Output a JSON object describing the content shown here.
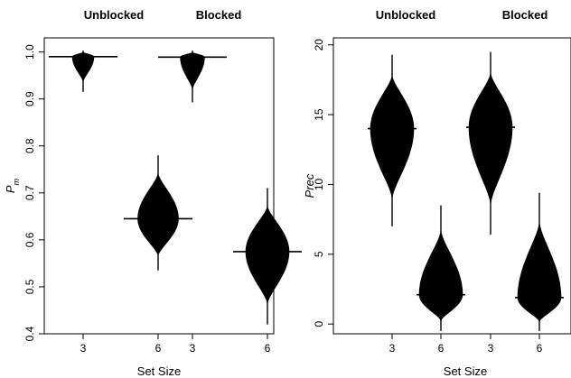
{
  "chart_data": [
    {
      "type": "violin",
      "xlabel": "Set Size",
      "ylabel": "P_m",
      "ylim": [
        0.4,
        1.03
      ],
      "yticks": [
        0.4,
        0.5,
        0.6,
        0.7,
        0.8,
        0.9,
        1.0
      ],
      "ytick_labels": [
        "0.4",
        "0.5",
        "0.6",
        "0.7",
        "0.8",
        "0.9",
        "1.0"
      ],
      "groups": [
        "Unblocked",
        "Blocked"
      ],
      "categories": [
        "3",
        "6",
        "3",
        "6"
      ],
      "series": [
        {
          "group": "Unblocked",
          "set_size": "3",
          "mean": 0.99,
          "min": 0.915,
          "max": 1.003
        },
        {
          "group": "Unblocked",
          "set_size": "6",
          "mean": 0.645,
          "min": 0.535,
          "max": 0.78
        },
        {
          "group": "Blocked",
          "set_size": "3",
          "mean": 0.989,
          "min": 0.893,
          "max": 1.003
        },
        {
          "group": "Blocked",
          "set_size": "6",
          "mean": 0.575,
          "min": 0.42,
          "max": 0.71
        }
      ]
    },
    {
      "type": "violin",
      "xlabel": "Set Size",
      "ylabel": "Prec",
      "ylim": [
        -0.7,
        20.5
      ],
      "yticks": [
        0,
        5,
        10,
        15,
        20
      ],
      "ytick_labels": [
        "0",
        "5",
        "10",
        "15",
        "20"
      ],
      "groups": [
        "Unblocked",
        "Blocked"
      ],
      "categories": [
        "3",
        "6",
        "3",
        "6"
      ],
      "series": [
        {
          "group": "Unblocked",
          "set_size": "3",
          "mean": 14.0,
          "min": 7.0,
          "max": 19.3
        },
        {
          "group": "Unblocked",
          "set_size": "6",
          "mean": 2.1,
          "min": -0.5,
          "max": 8.5
        },
        {
          "group": "Blocked",
          "set_size": "3",
          "mean": 14.1,
          "min": 6.4,
          "max": 19.5
        },
        {
          "group": "Blocked",
          "set_size": "6",
          "mean": 1.9,
          "min": -0.5,
          "max": 9.4
        }
      ]
    }
  ]
}
